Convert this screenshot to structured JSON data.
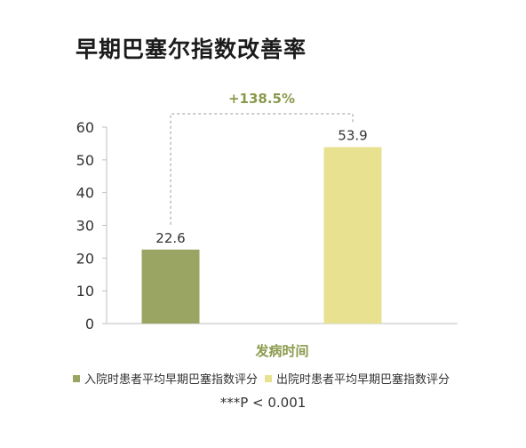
{
  "title": "早期巴塞尔指数改善率",
  "note": "***P < 0.001",
  "colors": {
    "admission": "#9aa563",
    "discharge": "#e8e290",
    "accent": "#8a9a4c",
    "axis": "#bfbfbf"
  },
  "chart_data": {
    "type": "bar",
    "title": "早期巴塞尔指数改善率",
    "xlabel": "发病时间",
    "ylabel": "",
    "ylim": [
      0,
      60
    ],
    "yticks": [
      0,
      10,
      20,
      30,
      40,
      50,
      60
    ],
    "grid": false,
    "legend_position": "bottom",
    "annotation": "+138.5%",
    "series": [
      {
        "name": "入院时患者平均早期巴塞指数评分",
        "values": [
          22.6
        ],
        "value_label": "22.6",
        "color": "#9aa563"
      },
      {
        "name": "出院时患者平均早期巴塞指数评分",
        "values": [
          53.9
        ],
        "value_label": "53.9",
        "color": "#e8e290"
      }
    ]
  }
}
